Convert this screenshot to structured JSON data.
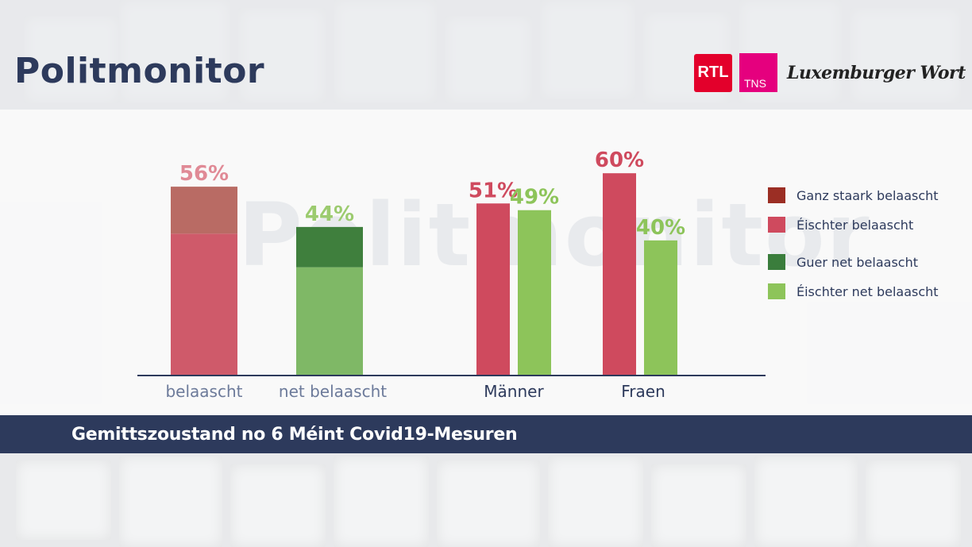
{
  "header": {
    "title": "Politmonitor",
    "logos": {
      "rtl": "RTL",
      "tns": "TNS",
      "wort": "Luxemburger Wort"
    }
  },
  "watermark": "Politmonitor",
  "footer": {
    "caption": "Gemittszoustand no 6 Méint Covid19-Mesuren"
  },
  "colors": {
    "ganz_staark": "#9b2e24",
    "eischter_belaascht": "#cf4a5e",
    "guer_net": "#3a7d3c",
    "eischter_net": "#8dc45a",
    "stacked_top_red": "#b96b64",
    "stacked_bottom_red": "#cf5a6a",
    "stacked_top_green": "#3f7f3d",
    "stacked_bottom_green": "#7fb866",
    "navy": "#2d3a5c",
    "label_pink": "#e08a96",
    "label_green": "#9ccb6f"
  },
  "chart_data": {
    "type": "bar",
    "categories": [
      "belaascht",
      "net belaascht",
      "Männer",
      "Fraen"
    ],
    "total": {
      "belaascht": {
        "value": 56,
        "label": "56%",
        "segments": {
          "Ganz staark belaascht": 14,
          "Éischter belaascht": 42
        }
      },
      "net_belaascht": {
        "value": 44,
        "label": "44%",
        "segments": {
          "Guer net belaascht": 12,
          "Éischter net belaascht": 32
        }
      }
    },
    "by_gender": [
      {
        "category": "Männer",
        "belaascht": 51,
        "net_belaascht": 49,
        "labels": [
          "51%",
          "49%"
        ]
      },
      {
        "category": "Fraen",
        "belaascht": 60,
        "net_belaascht": 40,
        "labels": [
          "60%",
          "40%"
        ]
      }
    ],
    "legend": [
      "Ganz staark belaascht",
      "Éischter belaascht",
      "Guer net belaascht",
      "Éischter net belaascht"
    ],
    "legend_position": "right",
    "ylim": [
      0,
      60
    ]
  }
}
